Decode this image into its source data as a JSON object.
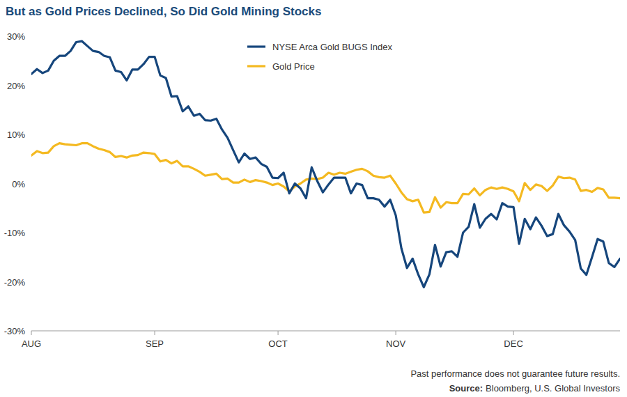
{
  "chart_data": {
    "type": "line",
    "title": "But as Gold Prices Declined, So Did Gold Mining Stocks",
    "note": "Past performance does not guarantee future results.",
    "source_label": "Source:",
    "source": "Bloomberg, U.S. Global Investors",
    "categories": [
      "AUG",
      null,
      null,
      null,
      null,
      null,
      null,
      null,
      null,
      null,
      null,
      null,
      null,
      null,
      null,
      null,
      null,
      null,
      null,
      null,
      null,
      null,
      "SEP",
      null,
      null,
      null,
      null,
      null,
      null,
      null,
      null,
      null,
      null,
      null,
      null,
      null,
      null,
      null,
      null,
      null,
      null,
      null,
      null,
      null,
      "OCT",
      null,
      null,
      null,
      null,
      null,
      null,
      null,
      null,
      null,
      null,
      null,
      null,
      null,
      null,
      null,
      null,
      null,
      null,
      null,
      null,
      "NOV",
      null,
      null,
      null,
      null,
      null,
      null,
      null,
      null,
      null,
      null,
      null,
      null,
      null,
      null,
      null,
      null,
      null,
      null,
      null,
      null,
      "DEC",
      null,
      null,
      null,
      null,
      null,
      null,
      null,
      null,
      null,
      null,
      null,
      null,
      null,
      null,
      null,
      null,
      null,
      null,
      null
    ],
    "series": [
      {
        "name": "NYSE Arca Gold BUGS Index",
        "color": "#16467c",
        "values": [
          22.3,
          23.3,
          22.5,
          23,
          25,
          26,
          26,
          27,
          28.8,
          29,
          28,
          27,
          26.8,
          26,
          25.7,
          23,
          22.7,
          21,
          23.2,
          23.2,
          24.3,
          25.8,
          25.8,
          22,
          21.5,
          17.7,
          17.8,
          14.7,
          15.7,
          13.8,
          14.2,
          12.9,
          12.8,
          13.2,
          11,
          9.3,
          6.8,
          4.3,
          6.1,
          5,
          5.3,
          4,
          3.4,
          1.2,
          1.1,
          2.2,
          -2,
          0,
          -1,
          -3,
          3.3,
          0.5,
          -1.8,
          -0.2,
          1.2,
          1.2,
          1.2,
          -2,
          0,
          -0.3,
          -3,
          -3,
          -3.3,
          -4.7,
          -3.3,
          -6.5,
          -13.2,
          -17.2,
          -15.3,
          -18.5,
          -21.1,
          -18.5,
          -12.5,
          -16.9,
          -14,
          -13.8,
          -14.9,
          -10,
          -8.8,
          -4.2,
          -9,
          -7.2,
          -6.2,
          -7.3,
          -4,
          -4.7,
          -4.8,
          -12.3,
          -7.2,
          -9.3,
          -6.9,
          -8.6,
          -10.7,
          -10.3,
          -6.2,
          -8.5,
          -9.8,
          -11.5,
          -17.3,
          -18.6,
          -15,
          -11.3,
          -11.8,
          -16.2,
          -17,
          -15.3
        ]
      },
      {
        "name": "Gold Price",
        "color": "#f4b921",
        "values": [
          5.7,
          6.6,
          6.2,
          6.3,
          7.6,
          8.2,
          8,
          7.9,
          7.8,
          8.2,
          8.2,
          7.6,
          7.1,
          6.8,
          6.4,
          5.4,
          5.6,
          5.3,
          5.7,
          5.8,
          6.3,
          6.2,
          6,
          4.5,
          4.8,
          4.1,
          4.6,
          3.5,
          3.5,
          3,
          2.4,
          1.6,
          1.8,
          2,
          0.9,
          1,
          0.2,
          0.2,
          0.8,
          0.3,
          0.7,
          0.5,
          0.2,
          -0.3,
          0,
          -0.6,
          -1.6,
          -0.6,
          0,
          0.8,
          1,
          0.9,
          1.2,
          2.2,
          1.8,
          2.2,
          2,
          2.4,
          2.8,
          3,
          2.5,
          1.6,
          1.3,
          1.2,
          1.6,
          0,
          -1.8,
          -3.2,
          -3.6,
          -3.3,
          -5.9,
          -5.8,
          -2.8,
          -4.9,
          -3.8,
          -4,
          -4,
          -2.1,
          -2.2,
          -1,
          -2.4,
          -1.3,
          -0.8,
          -1.1,
          -0.8,
          -1.1,
          -1.6,
          -3.6,
          0.1,
          -1.3,
          -0.2,
          -0.5,
          -1.5,
          -0.4,
          1.4,
          1.1,
          1.2,
          0.8,
          -1.5,
          -1.3,
          -1.7,
          -0.9,
          -1.2,
          -2.9,
          -2.9,
          -3
        ]
      }
    ],
    "ylim": [
      -30,
      30
    ],
    "yticks": [
      {
        "value": -30,
        "label": "-30%"
      },
      {
        "value": -20,
        "label": "-20%"
      },
      {
        "value": -10,
        "label": "-10%"
      },
      {
        "value": 0,
        "label": "0%"
      },
      {
        "value": 10,
        "label": "10%"
      },
      {
        "value": 20,
        "label": "20%"
      },
      {
        "value": 30,
        "label": "30%"
      }
    ],
    "grid": false,
    "legend": "top"
  }
}
